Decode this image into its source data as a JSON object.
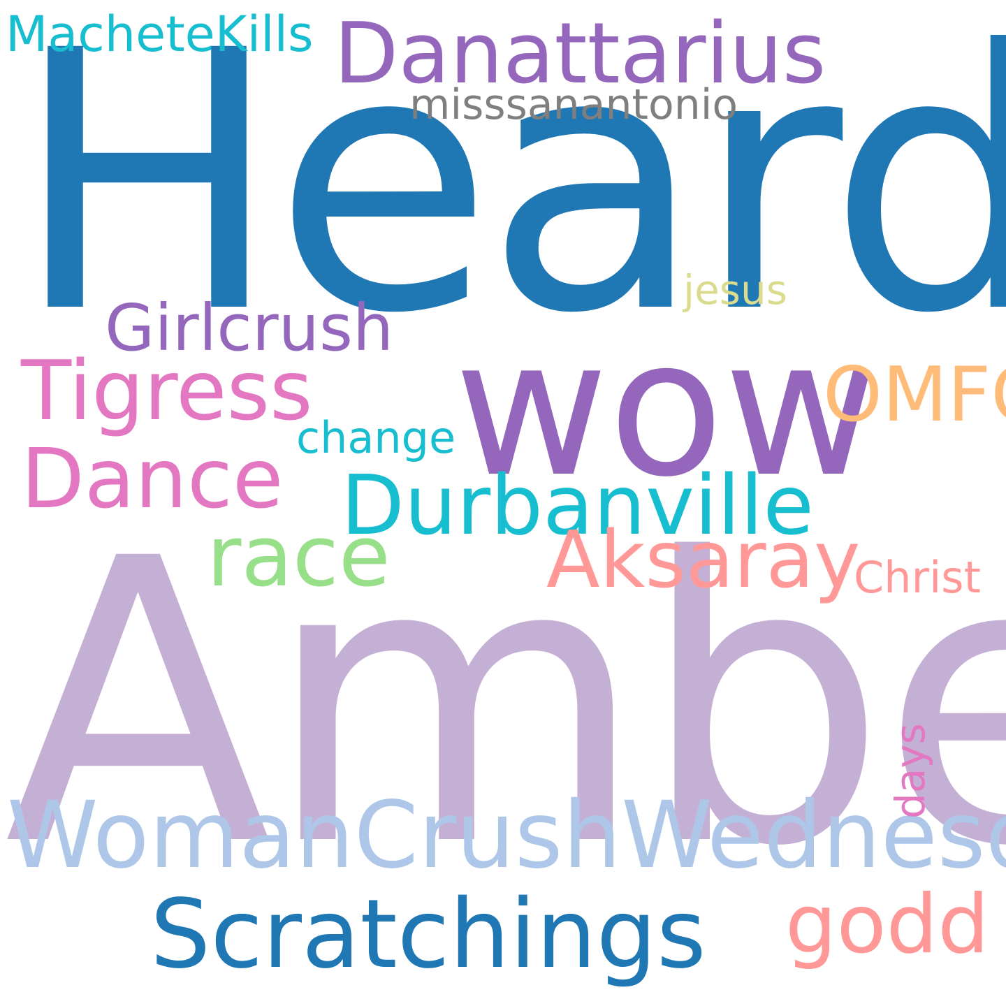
{
  "words": [
    {
      "text": "Heard",
      "color": "#1f77b4"
    },
    {
      "text": "Amber",
      "color": "#c5b0d5"
    },
    {
      "text": "wow",
      "color": "#9467bd"
    },
    {
      "text": "WomanCrushWednesday",
      "color": "#aec7e8"
    },
    {
      "text": "Scratchings",
      "color": "#1f77b4"
    },
    {
      "text": "Danattarius",
      "color": "#9467bd"
    },
    {
      "text": "Durbanville",
      "color": "#17becf"
    },
    {
      "text": "Tigress",
      "color": "#e377c2"
    },
    {
      "text": "Dance",
      "color": "#e377c2"
    },
    {
      "text": "race",
      "color": "#98df8a"
    },
    {
      "text": "Aksaray",
      "color": "#ff9896"
    },
    {
      "text": "godd",
      "color": "#ff9896"
    },
    {
      "text": "OMFG",
      "color": "#ffbb78"
    },
    {
      "text": "Girlcrush",
      "color": "#9467bd"
    },
    {
      "text": "MacheteKills",
      "color": "#17becf"
    },
    {
      "text": "misssanantonio",
      "color": "#7f7f7f"
    },
    {
      "text": "Christ",
      "color": "#ff9896"
    },
    {
      "text": "change",
      "color": "#17becf"
    },
    {
      "text": "jesus",
      "color": "#dbdb8d"
    },
    {
      "text": "days",
      "color": "#e377c2"
    }
  ]
}
